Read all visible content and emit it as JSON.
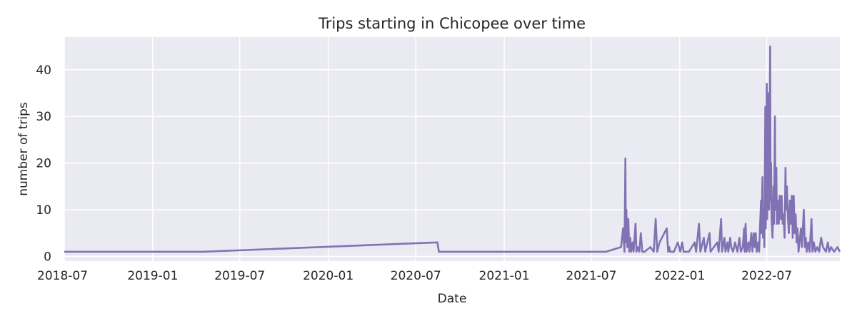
{
  "chart_data": {
    "type": "line",
    "title": "Trips starting in Chicopee over time",
    "xlabel": "Date",
    "ylabel": "number of trips",
    "grid": true,
    "legend": "none",
    "xlim": [
      "2018-07-01",
      "2022-11-30"
    ],
    "ylim": [
      -1,
      47
    ],
    "x_ticks": [
      "2018-07",
      "2019-01",
      "2019-07",
      "2020-01",
      "2020-07",
      "2021-01",
      "2021-07",
      "2022-01",
      "2022-07"
    ],
    "y_ticks": [
      0,
      10,
      20,
      30,
      40
    ],
    "series": [
      {
        "name": "trips",
        "color": "#8172b3",
        "points": [
          [
            "2018-07-01",
            1
          ],
          [
            "2019-04-15",
            1
          ],
          [
            "2020-08-15",
            3
          ],
          [
            "2020-08-18",
            1
          ],
          [
            "2021-08-01",
            1
          ],
          [
            "2021-09-01",
            2
          ],
          [
            "2021-09-05",
            6
          ],
          [
            "2021-09-08",
            1
          ],
          [
            "2021-09-10",
            21
          ],
          [
            "2021-09-11",
            3
          ],
          [
            "2021-09-12",
            10
          ],
          [
            "2021-09-14",
            2
          ],
          [
            "2021-09-16",
            8
          ],
          [
            "2021-09-18",
            1
          ],
          [
            "2021-09-20",
            4
          ],
          [
            "2021-09-22",
            1
          ],
          [
            "2021-09-25",
            3
          ],
          [
            "2021-09-27",
            1
          ],
          [
            "2021-10-01",
            7
          ],
          [
            "2021-10-03",
            1
          ],
          [
            "2021-10-06",
            2
          ],
          [
            "2021-10-09",
            1
          ],
          [
            "2021-10-12",
            5
          ],
          [
            "2021-10-15",
            1
          ],
          [
            "2021-10-20",
            1
          ],
          [
            "2021-11-01",
            2
          ],
          [
            "2021-11-08",
            1
          ],
          [
            "2021-11-12",
            8
          ],
          [
            "2021-11-15",
            1
          ],
          [
            "2021-11-20",
            3
          ],
          [
            "2021-12-05",
            6
          ],
          [
            "2021-12-08",
            1
          ],
          [
            "2021-12-10",
            2
          ],
          [
            "2021-12-12",
            1
          ],
          [
            "2021-12-20",
            1
          ],
          [
            "2021-12-28",
            3
          ],
          [
            "2022-01-02",
            1
          ],
          [
            "2022-01-06",
            3
          ],
          [
            "2022-01-09",
            1
          ],
          [
            "2022-01-20",
            1
          ],
          [
            "2022-02-01",
            3
          ],
          [
            "2022-02-04",
            1
          ],
          [
            "2022-02-10",
            7
          ],
          [
            "2022-02-13",
            1
          ],
          [
            "2022-02-20",
            4
          ],
          [
            "2022-02-23",
            1
          ],
          [
            "2022-03-04",
            5
          ],
          [
            "2022-03-06",
            1
          ],
          [
            "2022-03-20",
            3
          ],
          [
            "2022-03-23",
            1
          ],
          [
            "2022-03-28",
            8
          ],
          [
            "2022-03-30",
            1
          ],
          [
            "2022-04-04",
            4
          ],
          [
            "2022-04-06",
            1
          ],
          [
            "2022-04-10",
            3
          ],
          [
            "2022-04-12",
            1
          ],
          [
            "2022-04-16",
            4
          ],
          [
            "2022-04-18",
            2
          ],
          [
            "2022-04-22",
            1
          ],
          [
            "2022-04-26",
            3
          ],
          [
            "2022-05-01",
            1
          ],
          [
            "2022-05-05",
            4
          ],
          [
            "2022-05-08",
            1
          ],
          [
            "2022-05-12",
            2
          ],
          [
            "2022-05-15",
            6
          ],
          [
            "2022-05-16",
            1
          ],
          [
            "2022-05-18",
            7
          ],
          [
            "2022-05-20",
            1
          ],
          [
            "2022-05-24",
            3
          ],
          [
            "2022-05-26",
            1
          ],
          [
            "2022-05-30",
            5
          ],
          [
            "2022-06-01",
            1
          ],
          [
            "2022-06-04",
            5
          ],
          [
            "2022-06-06",
            2
          ],
          [
            "2022-06-08",
            5
          ],
          [
            "2022-06-10",
            1
          ],
          [
            "2022-06-13",
            3
          ],
          [
            "2022-06-15",
            1
          ],
          [
            "2022-06-19",
            12
          ],
          [
            "2022-06-20",
            5
          ],
          [
            "2022-06-22",
            17
          ],
          [
            "2022-06-23",
            4
          ],
          [
            "2022-06-25",
            10
          ],
          [
            "2022-06-26",
            2
          ],
          [
            "2022-06-28",
            32
          ],
          [
            "2022-06-29",
            6
          ],
          [
            "2022-07-01",
            37
          ],
          [
            "2022-07-02",
            8
          ],
          [
            "2022-07-03",
            26
          ],
          [
            "2022-07-04",
            15
          ],
          [
            "2022-07-05",
            35
          ],
          [
            "2022-07-06",
            10
          ],
          [
            "2022-07-08",
            45
          ],
          [
            "2022-07-09",
            12
          ],
          [
            "2022-07-10",
            20
          ],
          [
            "2022-07-11",
            8
          ],
          [
            "2022-07-13",
            4
          ],
          [
            "2022-07-15",
            15
          ],
          [
            "2022-07-16",
            7
          ],
          [
            "2022-07-18",
            30
          ],
          [
            "2022-07-19",
            10
          ],
          [
            "2022-07-21",
            19
          ],
          [
            "2022-07-22",
            7
          ],
          [
            "2022-07-24",
            12
          ],
          [
            "2022-07-26",
            7
          ],
          [
            "2022-07-28",
            13
          ],
          [
            "2022-07-30",
            8
          ],
          [
            "2022-08-01",
            13
          ],
          [
            "2022-08-03",
            7
          ],
          [
            "2022-08-05",
            9
          ],
          [
            "2022-08-07",
            4
          ],
          [
            "2022-08-09",
            19
          ],
          [
            "2022-08-10",
            10
          ],
          [
            "2022-08-12",
            15
          ],
          [
            "2022-08-14",
            8
          ],
          [
            "2022-08-16",
            5
          ],
          [
            "2022-08-18",
            12
          ],
          [
            "2022-08-20",
            7
          ],
          [
            "2022-08-22",
            13
          ],
          [
            "2022-08-24",
            4
          ],
          [
            "2022-08-26",
            13
          ],
          [
            "2022-08-28",
            5
          ],
          [
            "2022-08-30",
            9
          ],
          [
            "2022-09-01",
            3
          ],
          [
            "2022-09-03",
            6
          ],
          [
            "2022-09-05",
            1
          ],
          [
            "2022-09-08",
            4
          ],
          [
            "2022-09-10",
            6
          ],
          [
            "2022-09-12",
            2
          ],
          [
            "2022-09-14",
            6
          ],
          [
            "2022-09-16",
            10
          ],
          [
            "2022-09-18",
            2
          ],
          [
            "2022-09-20",
            4
          ],
          [
            "2022-09-22",
            1
          ],
          [
            "2022-09-25",
            3
          ],
          [
            "2022-09-28",
            1
          ],
          [
            "2022-10-02",
            8
          ],
          [
            "2022-10-04",
            1
          ],
          [
            "2022-10-07",
            3
          ],
          [
            "2022-10-10",
            1
          ],
          [
            "2022-10-14",
            2
          ],
          [
            "2022-10-18",
            1
          ],
          [
            "2022-10-22",
            4
          ],
          [
            "2022-10-26",
            2
          ],
          [
            "2022-11-01",
            1
          ],
          [
            "2022-11-05",
            3
          ],
          [
            "2022-11-08",
            1
          ],
          [
            "2022-11-12",
            2
          ],
          [
            "2022-11-18",
            1
          ],
          [
            "2022-11-25",
            2
          ],
          [
            "2022-11-30",
            1
          ]
        ]
      }
    ]
  }
}
